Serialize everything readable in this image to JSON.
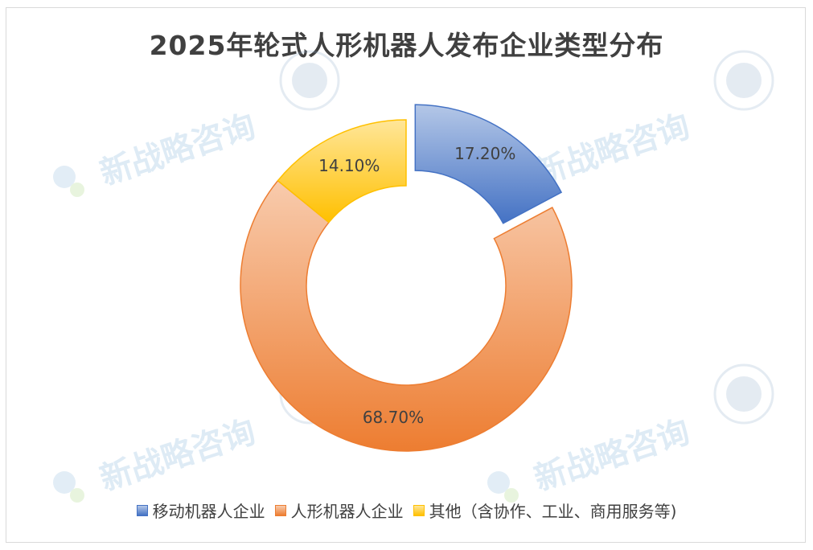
{
  "chart_data": {
    "type": "pie",
    "title": "2025年轮式人形机器人发布企业类型分布",
    "slices": [
      {
        "label": "移动机器人企业",
        "value": 17.2,
        "data_label": "17.20%",
        "color": "#4472c4",
        "light": "#b4c7e7",
        "exploded": true
      },
      {
        "label": "人形机器人企业",
        "value": 68.7,
        "data_label": "68.70%",
        "color": "#ed7d31",
        "light": "#f8cbad"
      },
      {
        "label": "其他（含协作、工业、商用服务等)",
        "value": 14.1,
        "data_label": "14.10%",
        "color": "#ffc000",
        "light": "#ffe699"
      }
    ],
    "legend_position": "bottom",
    "watermark": "新战略咨询"
  }
}
